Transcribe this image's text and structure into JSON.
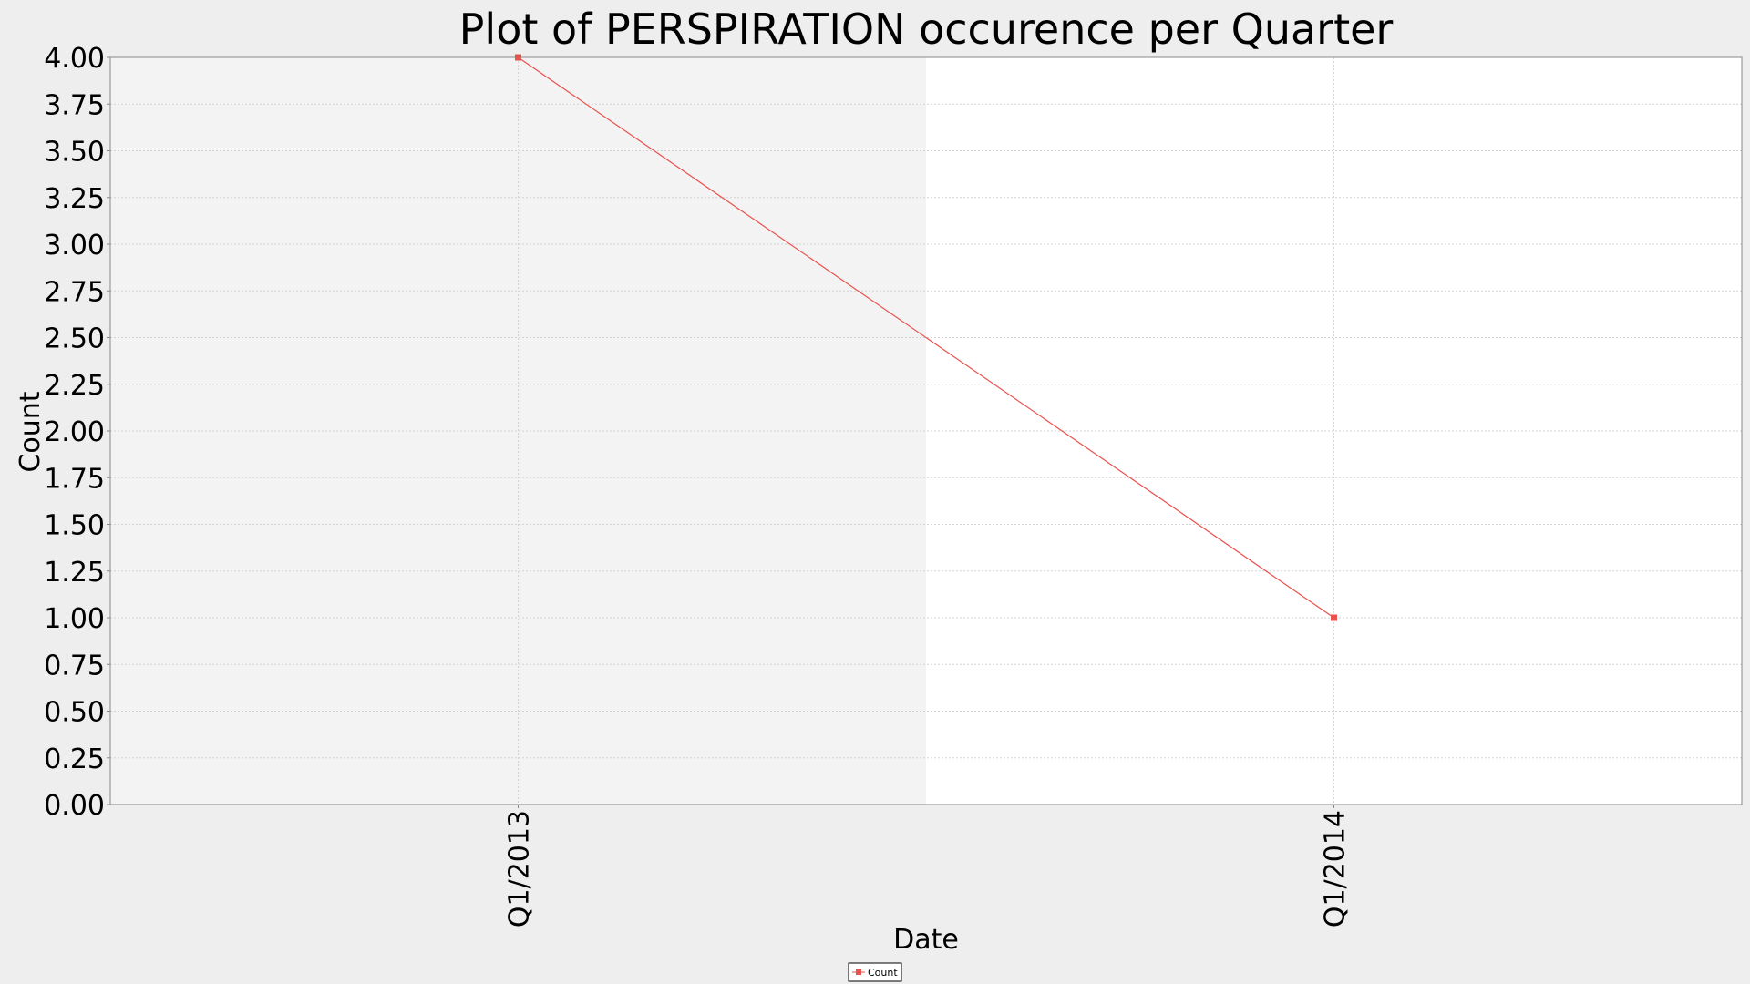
{
  "chart_data": {
    "type": "line",
    "title": "Plot of PERSPIRATION occurence per Quarter",
    "xlabel": "Date",
    "ylabel": "Count",
    "categories": [
      "Q1/2013",
      "Q1/2014"
    ],
    "series": [
      {
        "name": "Count",
        "values": [
          4,
          1
        ]
      }
    ],
    "ylim": [
      0,
      4
    ],
    "yticks": [
      "0.00",
      "0.25",
      "0.50",
      "0.75",
      "1.00",
      "1.25",
      "1.50",
      "1.75",
      "2.00",
      "2.25",
      "2.50",
      "2.75",
      "3.00",
      "3.25",
      "3.50",
      "3.75",
      "4.00"
    ],
    "grid": true,
    "legend_position": "bottom-center",
    "colors": {
      "series": "#e8524f",
      "background": "#eeeeee",
      "plot_left": "#f3f3f3",
      "plot_right": "#ffffff",
      "grid": "#d2d2d2"
    }
  }
}
